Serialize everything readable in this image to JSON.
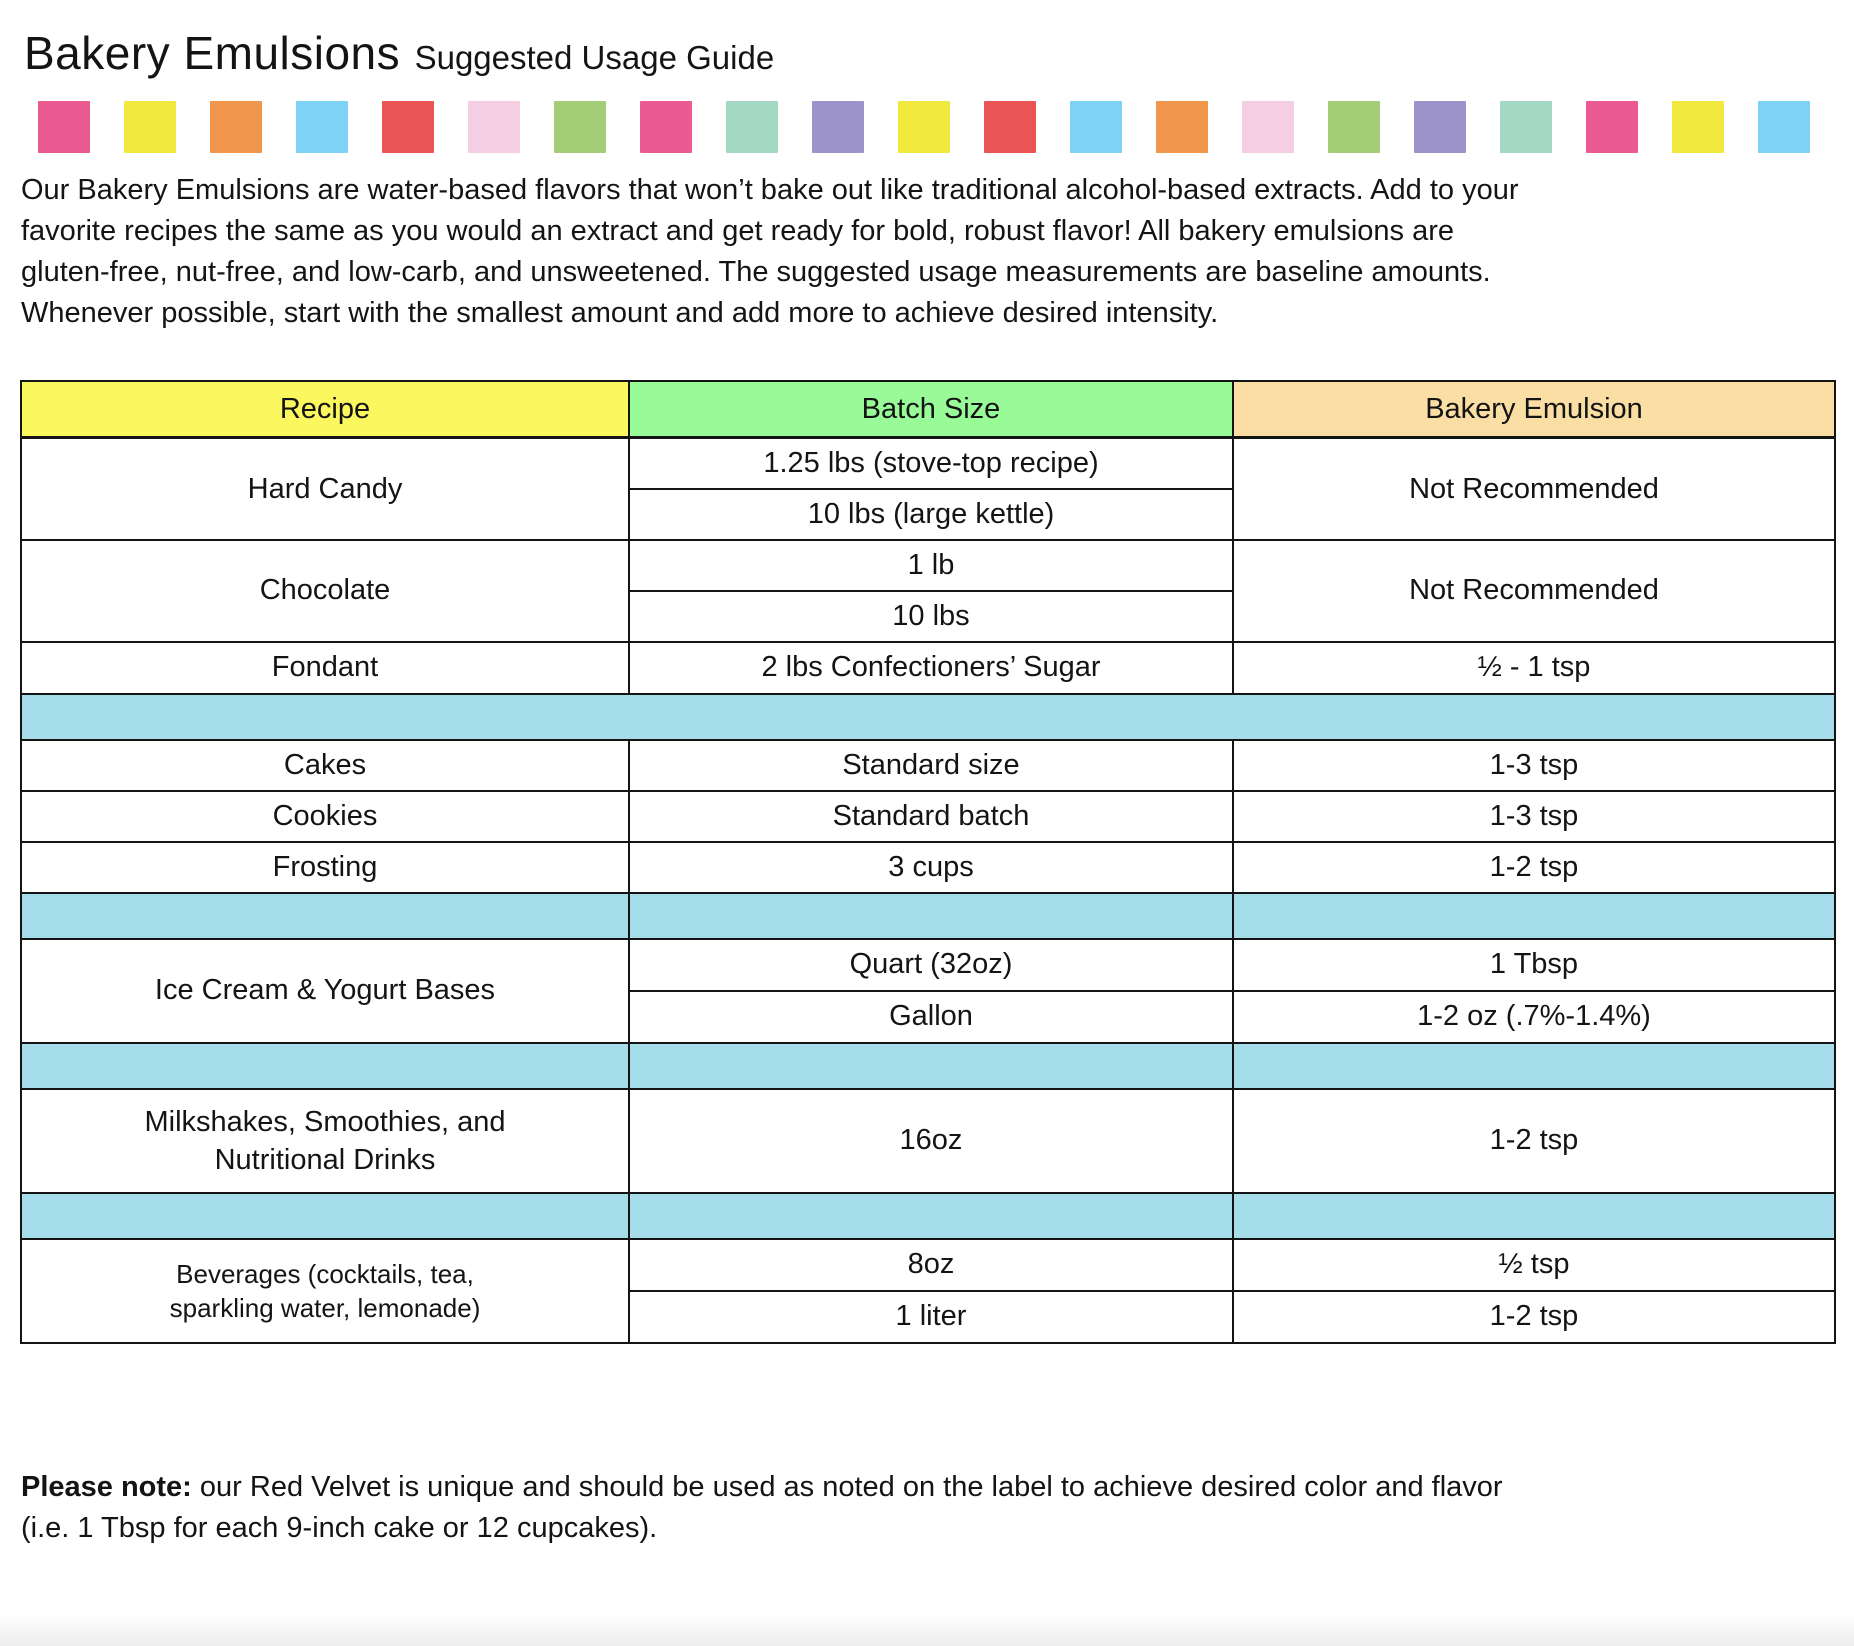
{
  "page": {
    "title": "Bakery Emulsions",
    "subtitle": "Suggested Usage Guide",
    "intro": "Our Bakery Emulsions are water-based flavors that won’t bake out like traditional alcohol-based extracts. Add to your favorite recipes the same as you would an extract and get ready for bold, robust flavor! All bakery emulsions are gluten-free, nut-free, and low-carb, and unsweetened. The suggested usage measurements are baseline amounts. Whenever possible, start with the smallest amount and add more to achieve desired intensity.",
    "note_label": "Please note:",
    "note_text": " our Red Velvet is unique and should be used as noted on the label to achieve desired color and flavor (i.e. 1 Tbsp for each 9-inch cake or 12 cupcakes)."
  },
  "decor_squares": {
    "colors": [
      "#EC5A92",
      "#F2E93E",
      "#F0964D",
      "#7DD2F5",
      "#E95455",
      "#F4CFE3",
      "#A4CD78",
      "#EC5A92",
      "#A3D9C3",
      "#9C93CB",
      "#F2E93E",
      "#E95455",
      "#7DD2F5",
      "#F0964D",
      "#F4CFE3",
      "#A4CD78",
      "#9C93CB",
      "#A3D9C3",
      "#EC5A92",
      "#F2E93E",
      "#7DD2F5"
    ]
  },
  "table": {
    "headers": [
      "Recipe",
      "Batch Size",
      "Bakery Emulsion"
    ],
    "header_colors": [
      "#FBF75F",
      "#98FB98",
      "#FBDEA4"
    ],
    "separator_color": "#A6DDEB",
    "rows": [
      {
        "recipe": "Hard Candy",
        "batch": "1.25 lbs (stove-top recipe)",
        "emulsion": "Not Recommended"
      },
      {
        "batch": "10 lbs (large kettle)"
      },
      {
        "recipe": "Chocolate",
        "batch": "1 lb",
        "emulsion": "Not Recommended"
      },
      {
        "batch": "10 lbs"
      },
      {
        "recipe": "Fondant",
        "batch": "2 lbs Confectioners’ Sugar",
        "emulsion": "½ - 1 tsp"
      },
      {
        "separator": true
      },
      {
        "recipe": "Cakes",
        "batch": "Standard size",
        "emulsion": "1-3 tsp"
      },
      {
        "recipe": "Cookies",
        "batch": "Standard batch",
        "emulsion": "1-3 tsp"
      },
      {
        "recipe": "Frosting",
        "batch": "3 cups",
        "emulsion": "1-2 tsp"
      },
      {
        "separator": true
      },
      {
        "recipe": "Ice Cream & Yogurt Bases",
        "batch": "Quart (32oz)",
        "emulsion": "1 Tbsp"
      },
      {
        "batch": "Gallon",
        "emulsion": "1-2 oz (.7%-1.4%)"
      },
      {
        "separator": true
      },
      {
        "recipe": "Milkshakes, Smoothies, and Nutritional Drinks",
        "batch": "16oz",
        "emulsion": "1-2 tsp"
      },
      {
        "separator": true
      },
      {
        "recipe": "Beverages (cocktails, tea, sparkling water, lemonade)",
        "batch": "8oz",
        "emulsion": "½ tsp"
      },
      {
        "batch": "1 liter",
        "emulsion": "1-2 tsp"
      }
    ]
  }
}
